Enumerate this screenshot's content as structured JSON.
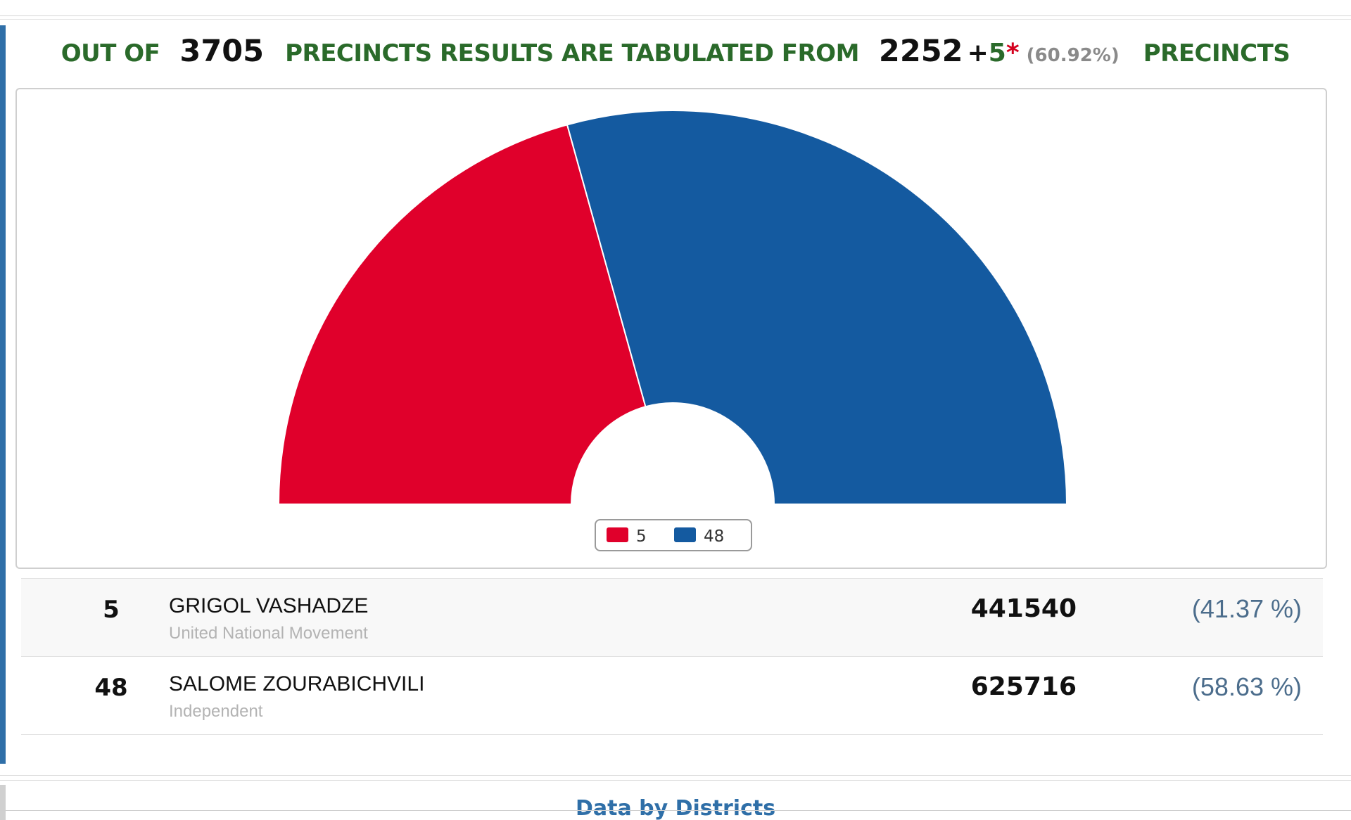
{
  "header": {
    "prefix": "OUT OF",
    "total_precincts": "3705",
    "middle": "PRECINCTS RESULTS ARE TABULATED FROM",
    "tabulated": "2252",
    "plus": "+",
    "extra": "5",
    "star": "*",
    "percent": "(60.92%)",
    "suffix": "PRECINCTS"
  },
  "chart_data": {
    "type": "pie",
    "variant": "semicircle-donut",
    "labels": [
      "5",
      "48"
    ],
    "values": [
      441540,
      625716
    ],
    "percentages": [
      41.37,
      58.63
    ],
    "colors": [
      "#e0002b",
      "#145aa0"
    ],
    "legend": {
      "position": "bottom-center",
      "items": [
        "5",
        "48"
      ]
    }
  },
  "results": [
    {
      "number": "5",
      "name": "GRIGOL VASHADZE",
      "party": "United National Movement",
      "votes": "441540",
      "percent": "(41.37 %)"
    },
    {
      "number": "48",
      "name": "SALOME ZOURABICHVILI",
      "party": "Independent",
      "votes": "625716",
      "percent": "(58.63 %)"
    }
  ],
  "districts": {
    "title": "Data by Districts"
  }
}
